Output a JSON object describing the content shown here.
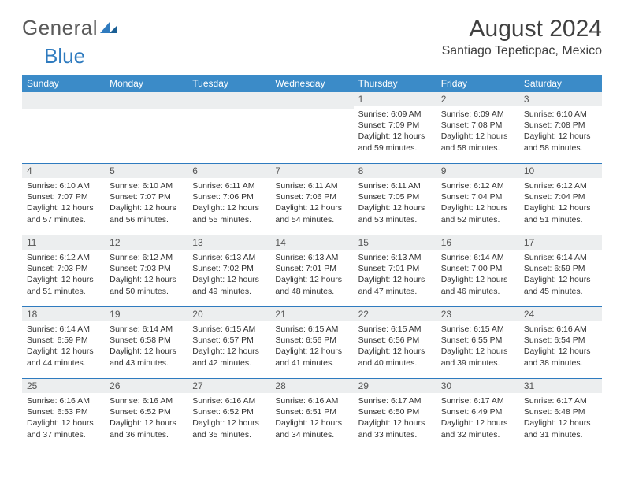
{
  "brand": {
    "part1": "General",
    "part2": "Blue"
  },
  "title": "August 2024",
  "location": "Santiago Tepeticpac, Mexico",
  "weekdays": [
    "Sunday",
    "Monday",
    "Tuesday",
    "Wednesday",
    "Thursday",
    "Friday",
    "Saturday"
  ],
  "colors": {
    "header_bg": "#3b8bc8",
    "header_text": "#ffffff",
    "daynum_bg": "#eceeef",
    "border": "#2f7bbf",
    "title_text": "#404040",
    "logo_gray": "#5a5a5a",
    "logo_blue": "#2f7bbf"
  },
  "typography": {
    "title_fontsize": 30,
    "location_fontsize": 16,
    "weekday_fontsize": 12,
    "daynum_fontsize": 12,
    "cell_fontsize": 10.5
  },
  "labels": {
    "sunrise": "Sunrise:",
    "sunset": "Sunset:",
    "daylight": "Daylight:"
  },
  "weeks": [
    [
      {
        "day": null
      },
      {
        "day": null
      },
      {
        "day": null
      },
      {
        "day": null
      },
      {
        "day": "1",
        "sunrise": "6:09 AM",
        "sunset": "7:09 PM",
        "daylight": "12 hours and 59 minutes."
      },
      {
        "day": "2",
        "sunrise": "6:09 AM",
        "sunset": "7:08 PM",
        "daylight": "12 hours and 58 minutes."
      },
      {
        "day": "3",
        "sunrise": "6:10 AM",
        "sunset": "7:08 PM",
        "daylight": "12 hours and 58 minutes."
      }
    ],
    [
      {
        "day": "4",
        "sunrise": "6:10 AM",
        "sunset": "7:07 PM",
        "daylight": "12 hours and 57 minutes."
      },
      {
        "day": "5",
        "sunrise": "6:10 AM",
        "sunset": "7:07 PM",
        "daylight": "12 hours and 56 minutes."
      },
      {
        "day": "6",
        "sunrise": "6:11 AM",
        "sunset": "7:06 PM",
        "daylight": "12 hours and 55 minutes."
      },
      {
        "day": "7",
        "sunrise": "6:11 AM",
        "sunset": "7:06 PM",
        "daylight": "12 hours and 54 minutes."
      },
      {
        "day": "8",
        "sunrise": "6:11 AM",
        "sunset": "7:05 PM",
        "daylight": "12 hours and 53 minutes."
      },
      {
        "day": "9",
        "sunrise": "6:12 AM",
        "sunset": "7:04 PM",
        "daylight": "12 hours and 52 minutes."
      },
      {
        "day": "10",
        "sunrise": "6:12 AM",
        "sunset": "7:04 PM",
        "daylight": "12 hours and 51 minutes."
      }
    ],
    [
      {
        "day": "11",
        "sunrise": "6:12 AM",
        "sunset": "7:03 PM",
        "daylight": "12 hours and 51 minutes."
      },
      {
        "day": "12",
        "sunrise": "6:12 AM",
        "sunset": "7:03 PM",
        "daylight": "12 hours and 50 minutes."
      },
      {
        "day": "13",
        "sunrise": "6:13 AM",
        "sunset": "7:02 PM",
        "daylight": "12 hours and 49 minutes."
      },
      {
        "day": "14",
        "sunrise": "6:13 AM",
        "sunset": "7:01 PM",
        "daylight": "12 hours and 48 minutes."
      },
      {
        "day": "15",
        "sunrise": "6:13 AM",
        "sunset": "7:01 PM",
        "daylight": "12 hours and 47 minutes."
      },
      {
        "day": "16",
        "sunrise": "6:14 AM",
        "sunset": "7:00 PM",
        "daylight": "12 hours and 46 minutes."
      },
      {
        "day": "17",
        "sunrise": "6:14 AM",
        "sunset": "6:59 PM",
        "daylight": "12 hours and 45 minutes."
      }
    ],
    [
      {
        "day": "18",
        "sunrise": "6:14 AM",
        "sunset": "6:59 PM",
        "daylight": "12 hours and 44 minutes."
      },
      {
        "day": "19",
        "sunrise": "6:14 AM",
        "sunset": "6:58 PM",
        "daylight": "12 hours and 43 minutes."
      },
      {
        "day": "20",
        "sunrise": "6:15 AM",
        "sunset": "6:57 PM",
        "daylight": "12 hours and 42 minutes."
      },
      {
        "day": "21",
        "sunrise": "6:15 AM",
        "sunset": "6:56 PM",
        "daylight": "12 hours and 41 minutes."
      },
      {
        "day": "22",
        "sunrise": "6:15 AM",
        "sunset": "6:56 PM",
        "daylight": "12 hours and 40 minutes."
      },
      {
        "day": "23",
        "sunrise": "6:15 AM",
        "sunset": "6:55 PM",
        "daylight": "12 hours and 39 minutes."
      },
      {
        "day": "24",
        "sunrise": "6:16 AM",
        "sunset": "6:54 PM",
        "daylight": "12 hours and 38 minutes."
      }
    ],
    [
      {
        "day": "25",
        "sunrise": "6:16 AM",
        "sunset": "6:53 PM",
        "daylight": "12 hours and 37 minutes."
      },
      {
        "day": "26",
        "sunrise": "6:16 AM",
        "sunset": "6:52 PM",
        "daylight": "12 hours and 36 minutes."
      },
      {
        "day": "27",
        "sunrise": "6:16 AM",
        "sunset": "6:52 PM",
        "daylight": "12 hours and 35 minutes."
      },
      {
        "day": "28",
        "sunrise": "6:16 AM",
        "sunset": "6:51 PM",
        "daylight": "12 hours and 34 minutes."
      },
      {
        "day": "29",
        "sunrise": "6:17 AM",
        "sunset": "6:50 PM",
        "daylight": "12 hours and 33 minutes."
      },
      {
        "day": "30",
        "sunrise": "6:17 AM",
        "sunset": "6:49 PM",
        "daylight": "12 hours and 32 minutes."
      },
      {
        "day": "31",
        "sunrise": "6:17 AM",
        "sunset": "6:48 PM",
        "daylight": "12 hours and 31 minutes."
      }
    ]
  ]
}
